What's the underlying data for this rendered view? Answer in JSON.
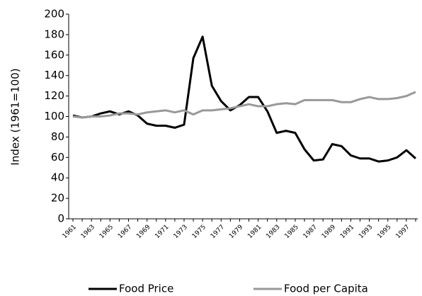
{
  "chart_data": {
    "type": "line",
    "y_label": "Index (1961=100)",
    "categories": [
      "1961",
      null,
      "1963",
      null,
      "1965",
      null,
      "1967",
      null,
      "1969",
      null,
      "1971",
      null,
      "1973",
      null,
      "1975",
      null,
      "1977",
      null,
      "1979",
      null,
      "1981",
      null,
      "1983",
      null,
      "1985",
      null,
      "1987",
      null,
      "1989",
      null,
      "1991",
      null,
      "1993",
      null,
      "1995",
      null,
      "1997",
      null
    ],
    "series": [
      {
        "name": "Food Price",
        "color": "#000000",
        "values": [
          101,
          99,
          100,
          103,
          105,
          102,
          105,
          101,
          93,
          91,
          91,
          89,
          92,
          157,
          178,
          130,
          115,
          106,
          111,
          119,
          119,
          105,
          84,
          86,
          84,
          68,
          57,
          58,
          73,
          71,
          62,
          59,
          59,
          56,
          57,
          60,
          67,
          59
        ]
      },
      {
        "name": "Food per Capita",
        "color": "#999999",
        "values": [
          100,
          99,
          100,
          100,
          101,
          103,
          103,
          102,
          104,
          105,
          106,
          104,
          106,
          102,
          106,
          106,
          107,
          108,
          110,
          112,
          110,
          110,
          112,
          113,
          112,
          116,
          116,
          116,
          116,
          114,
          114,
          117,
          119,
          117,
          117,
          118,
          120,
          124
        ]
      }
    ],
    "ylim": [
      0,
      200
    ],
    "yticks": [
      0,
      20,
      40,
      60,
      80,
      100,
      120,
      140,
      160,
      180,
      200
    ],
    "grid": false,
    "legend": "bottom"
  }
}
